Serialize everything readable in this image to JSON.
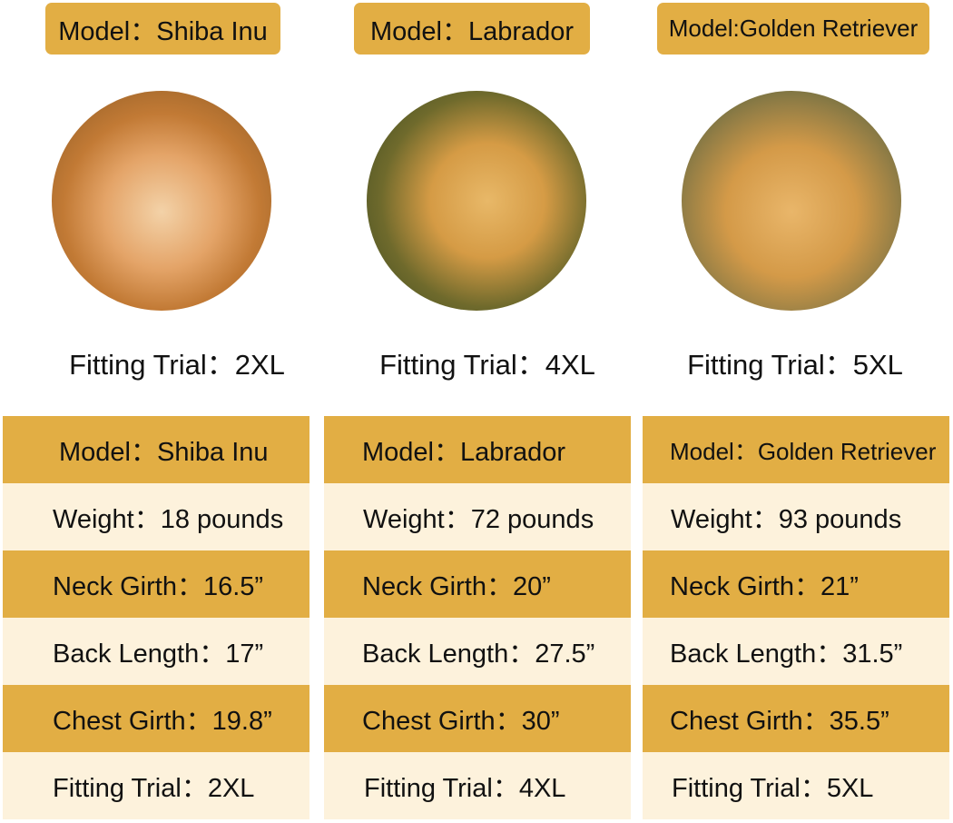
{
  "dogs": [
    {
      "tag": "Model：Shiba Inu",
      "photo": "shiba-inu-photo",
      "fitting": "Fitting Trial：2XL",
      "rows": [
        "Model：Shiba Inu",
        "Weight：18 pounds",
        "Neck Girth：16.5”",
        "Back Length：17”",
        "Chest Girth：19.8”",
        "Fitting Trial：2XL"
      ]
    },
    {
      "tag": "Model：Labrador",
      "photo": "labrador-photo",
      "fitting": "Fitting Trial：4XL",
      "rows": [
        "Model：Labrador",
        "Weight：72 pounds",
        "Neck Girth：20”",
        "Back Length：27.5”",
        "Chest Girth：30”",
        "Fitting Trial：4XL"
      ]
    },
    {
      "tag": "Model:Golden Retriever",
      "photo": "golden-retriever-photo",
      "fitting": "Fitting Trial：5XL",
      "rows": [
        "Model：Golden Retriever",
        "Weight：93 pounds",
        "Neck Girth：21”",
        "Back Length：31.5”",
        "Chest Girth：35.5”",
        "Fitting Trial：5XL"
      ]
    }
  ],
  "colors": {
    "gold": "#E2AE44",
    "cream": "#FDF2DC"
  }
}
